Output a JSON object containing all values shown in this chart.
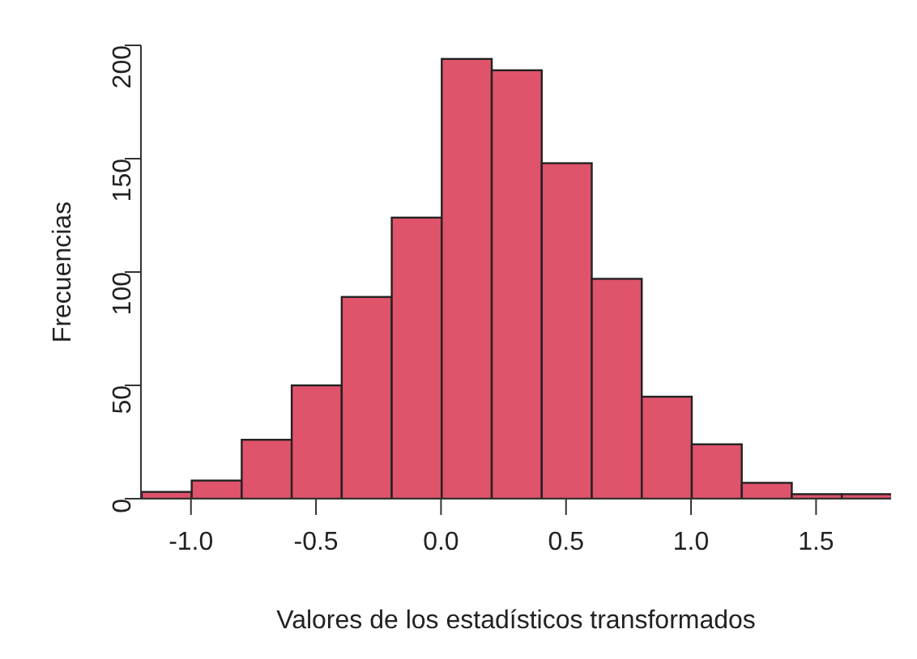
{
  "chart_data": {
    "type": "histogram",
    "xlabel": "Valores de los estadísticos transformados",
    "ylabel": "Frecuencias",
    "bins": [
      -1.2,
      -1.0,
      -0.8,
      -0.6,
      -0.4,
      -0.2,
      0.0,
      0.2,
      0.4,
      0.6,
      0.8,
      1.0,
      1.2,
      1.4,
      1.6,
      1.8
    ],
    "values": [
      3,
      8,
      26,
      50,
      89,
      124,
      194,
      189,
      148,
      97,
      45,
      24,
      7,
      2,
      2
    ],
    "color": "#df536b",
    "xlim": [
      -1.2,
      1.8
    ],
    "xticks": [
      {
        "value": -1,
        "label": "-1.0"
      },
      {
        "value": -0.5,
        "label": "-0.5"
      },
      {
        "value": 0,
        "label": "0.0"
      },
      {
        "value": 0.5,
        "label": "0.5"
      },
      {
        "value": 1,
        "label": "1.0"
      },
      {
        "value": 1.5,
        "label": "1.5"
      }
    ],
    "ylim": [
      0,
      200
    ],
    "yticks": [
      0,
      50,
      100,
      150,
      200
    ],
    "grid": false
  }
}
